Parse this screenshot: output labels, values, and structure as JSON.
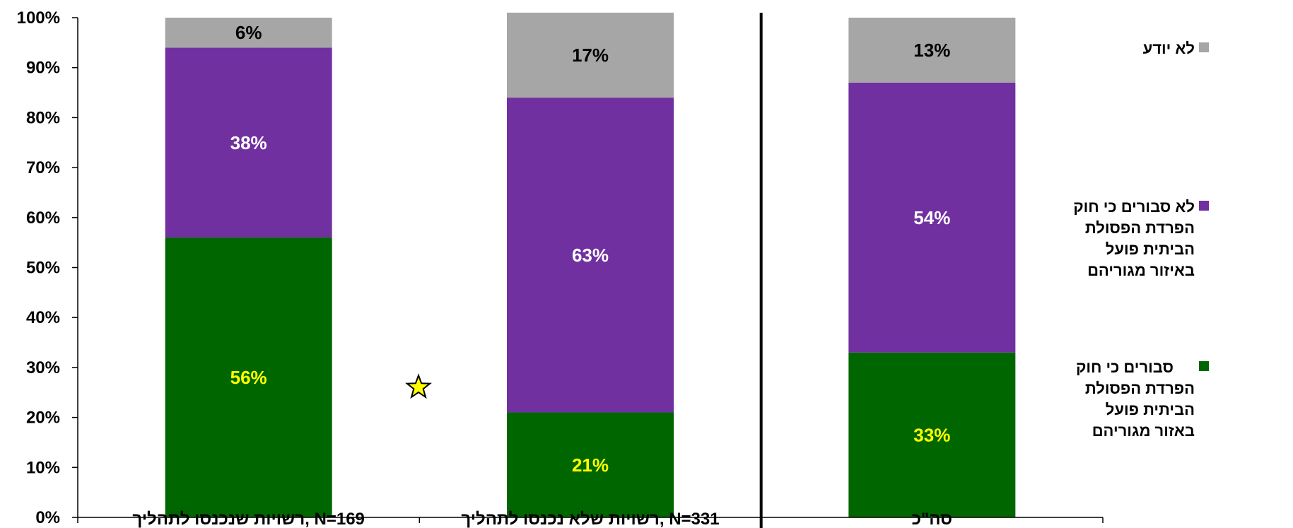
{
  "chart_data": {
    "type": "bar",
    "stacked": true,
    "categories": [
      "רשויות שנכנסו לתהליך, N=169",
      "רשויות שלא נכנסו לתהליך, N=331",
      "סה\"כ"
    ],
    "series": [
      {
        "name": "סבורים כי חוק הפרדת הפסולת הביתית פועל באזור מגוריהם",
        "color": "#006600",
        "label_color": "#FFFF00",
        "values": [
          56,
          21,
          33
        ],
        "labels": [
          "56%",
          "21%",
          "33%"
        ]
      },
      {
        "name": "לא סבורים כי חוק הפרדת הפסולת הביתית פועל באיזור מגוריהם",
        "color": "#7030A0",
        "label_color": "#FFFFFF",
        "values": [
          38,
          63,
          54
        ],
        "labels": [
          "38%",
          "63%",
          "54%"
        ]
      },
      {
        "name": "לא יודע",
        "color": "#A6A6A6",
        "label_color": "#000000",
        "values": [
          6,
          17,
          13
        ],
        "labels": [
          "6%",
          "17%",
          "13%"
        ]
      }
    ],
    "ylim": [
      0,
      100
    ],
    "yticks": [
      "0%",
      "10%",
      "20%",
      "30%",
      "40%",
      "50%",
      "60%",
      "70%",
      "80%",
      "90%",
      "100%"
    ],
    "legend": {
      "placement": "right",
      "entries": [
        {
          "lines": [
            "לא יודע"
          ],
          "color": "#A6A6A6"
        },
        {
          "lines": [
            "לא סבורים כי חוק",
            "הפרדת הפסולת",
            "הביתית פועל",
            "באיזור מגוריהם"
          ],
          "color": "#7030A0"
        },
        {
          "lines": [
            "סבורים כי חוק",
            "הפרדת הפסולת",
            "הביתית פועל",
            "באזור מגוריהם"
          ],
          "color": "#006600"
        }
      ]
    },
    "annotations": [
      {
        "type": "star",
        "color": "#FFFF00",
        "near": "between first and second bar"
      }
    ]
  }
}
